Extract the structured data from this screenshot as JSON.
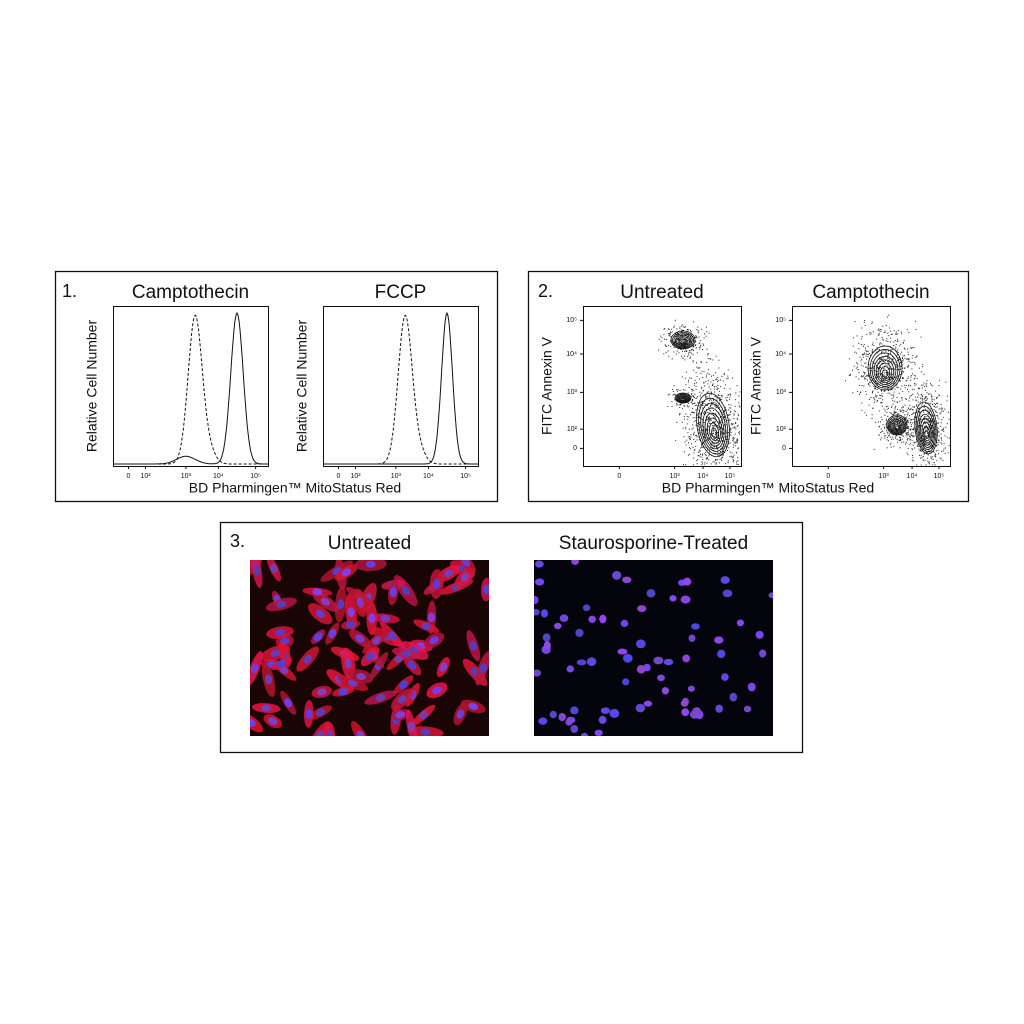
{
  "panels": [
    {
      "number": "1.",
      "xlabel": "BD Pharmingen™ MitoStatus Red",
      "plots": [
        {
          "title": "Camptothecin",
          "ylabel": "Relative Cell Number",
          "xticks": [
            "0",
            "10²",
            "10³",
            "10⁴",
            "10⁵"
          ]
        },
        {
          "title": "FCCP",
          "ylabel": "Relative Cell Number",
          "xticks": [
            "0",
            "10²",
            "10³",
            "10⁴",
            "10⁵"
          ]
        }
      ]
    },
    {
      "number": "2.",
      "xlabel": "BD Pharmingen™ MitoStatus Red",
      "plots": [
        {
          "title": "Untreated",
          "ylabel": "FITC Annexin V",
          "xticks": [
            "0",
            "10³",
            "10⁴",
            "10⁵"
          ],
          "yticks": [
            "10⁵",
            "10⁴",
            "10³",
            "10²",
            "0"
          ]
        },
        {
          "title": "Camptothecin",
          "ylabel": "FITC Annexin V",
          "xticks": [
            "0",
            "10³",
            "10⁴",
            "10⁵"
          ],
          "yticks": [
            "10⁵",
            "10⁴",
            "10³",
            "10²",
            "0"
          ]
        }
      ]
    },
    {
      "number": "3.",
      "images": [
        {
          "title": "Untreated"
        },
        {
          "title": "Staurosporine-Treated"
        }
      ]
    }
  ]
}
